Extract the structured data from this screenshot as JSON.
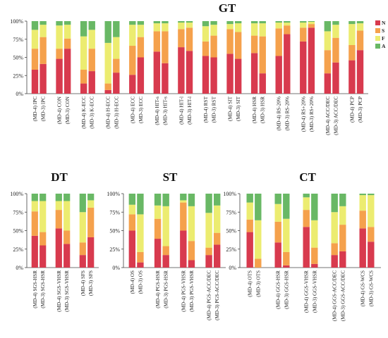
{
  "colors": {
    "N": "#d83a4e",
    "S": "#f5a14c",
    "F": "#ecec70",
    "A": "#69b865"
  },
  "legend": [
    "N",
    "S",
    "F",
    "A"
  ],
  "y_ticks": [
    "0%",
    "25%",
    "50%",
    "75%",
    "100%"
  ],
  "chart_data": [
    {
      "type": "bar",
      "stacked": true,
      "title": "GT",
      "ylim": [
        0,
        100
      ],
      "series_names": [
        "N",
        "S",
        "F",
        "A"
      ],
      "categories": [
        "(MD-4) IPC",
        "(MD-3) IPC",
        "(MD-4) CON",
        "(MD-3) CON",
        "(MD-4) K-ECC",
        "(MD-3) K-ECC",
        "(MD-4) H-ECC",
        "(MD-3) H-ECC",
        "(MD-4) ECC",
        "(MD-3) ECC",
        "(MD-4) HIT-s",
        "(MD-3) HIT-s",
        "(MD-4) HIT-l",
        "(MD-3) HIT-l",
        "(MD-4) RST",
        "(MD-3) RST",
        "(MD-4) SIT",
        "(MD-3) SIT",
        "(MD-4) HSR",
        "(MD-3) HSR",
        "(MD-4) RS-20%",
        "(MD-3) RS-20%",
        "(MD-4) RS+20%",
        "(MD-3) RS+20%",
        "(MD-4) ACC/DEC",
        "(MD-3) ACC/DEC",
        "(MD-4) PCP",
        "(MD-3) PCP"
      ],
      "values": [
        [
          33,
          29,
          26,
          12
        ],
        [
          41,
          37,
          17,
          5
        ],
        [
          48,
          14,
          32,
          6
        ],
        [
          62,
          14,
          19,
          5
        ],
        [
          14,
          19,
          46,
          21
        ],
        [
          31,
          31,
          26,
          12
        ],
        [
          5,
          9,
          56,
          30
        ],
        [
          29,
          19,
          30,
          22
        ],
        [
          26,
          40,
          29,
          5
        ],
        [
          50,
          28,
          17,
          5
        ],
        [
          58,
          28,
          11,
          3
        ],
        [
          42,
          44,
          11,
          3
        ],
        [
          64,
          25,
          9,
          2
        ],
        [
          59,
          32,
          7,
          2
        ],
        [
          52,
          20,
          21,
          7
        ],
        [
          50,
          30,
          15,
          5
        ],
        [
          55,
          34,
          7,
          4
        ],
        [
          48,
          37,
          12,
          3
        ],
        [
          56,
          24,
          17,
          3
        ],
        [
          28,
          51,
          18,
          3
        ],
        [
          52,
          38,
          8,
          2
        ],
        [
          82,
          12,
          4,
          2
        ],
        [
          72,
          19,
          7,
          2
        ],
        [
          91,
          5,
          3,
          1
        ],
        [
          28,
          32,
          26,
          14
        ],
        [
          43,
          34,
          18,
          5
        ],
        [
          46,
          21,
          29,
          4
        ],
        [
          60,
          27,
          10,
          3
        ]
      ]
    },
    {
      "type": "bar",
      "stacked": true,
      "title": "DT",
      "ylim": [
        0,
        100
      ],
      "series_names": [
        "N",
        "S",
        "F",
        "A"
      ],
      "categories": [
        "(MD-4) SGS-HSR",
        "(MD-3) SGS-HSR",
        "(MD-4) SGS-VHSR",
        "(MD-3) SGS-VHSR",
        "(MD-4) SFS",
        "(MD-3) SFS"
      ],
      "values": [
        [
          43,
          33,
          14,
          10
        ],
        [
          30,
          18,
          42,
          10
        ],
        [
          53,
          25,
          12,
          10
        ],
        [
          32,
          18,
          40,
          10
        ],
        [
          17,
          17,
          41,
          25
        ],
        [
          41,
          40,
          10,
          9
        ]
      ]
    },
    {
      "type": "bar",
      "stacked": true,
      "title": "ST",
      "ylim": [
        0,
        100
      ],
      "series_names": [
        "N",
        "S",
        "F",
        "A"
      ],
      "categories": [
        "(MD-4) OS",
        "(MD-3) OS",
        "(MD-4) PGS-HSR",
        "(MD-3) PGS-HSR",
        "(MD-4) PGS-VHSR",
        "(MD-3) PGS-VHSR",
        "(MD-4) PGS-ACC/DEC",
        "(MD-3) PGS-ACC/DEC"
      ],
      "values": [
        [
          50,
          22,
          13,
          15
        ],
        [
          7,
          14,
          51,
          28
        ],
        [
          39,
          27,
          18,
          16
        ],
        [
          17,
          12,
          54,
          17
        ],
        [
          50,
          38,
          3,
          9
        ],
        [
          10,
          26,
          47,
          17
        ],
        [
          17,
          10,
          47,
          26
        ],
        [
          31,
          16,
          37,
          16
        ]
      ]
    },
    {
      "type": "bar",
      "stacked": true,
      "title": "CT",
      "ylim": [
        0,
        100
      ],
      "series_names": [
        "N",
        "S",
        "F",
        "A"
      ],
      "categories": [
        "(MD-4) OTS",
        "(MD-3) OTS",
        "(MD-4) GGS-HSR",
        "(MD-3) GGS-HSR",
        "(MD-4) GGS-VHSR",
        "(MD-3) GGS-VHSR",
        "(MD-4) GGS-ACC/DEC",
        "(MD-3) GGS-ACC/DEC",
        "(MD-4) GS-WCS",
        "(MD-3) GS-WCS"
      ],
      "values": [
        [
          48,
          17,
          23,
          12
        ],
        [
          0,
          12,
          52,
          36
        ],
        [
          34,
          28,
          24,
          14
        ],
        [
          3,
          18,
          45,
          34
        ],
        [
          55,
          23,
          17,
          5
        ],
        [
          5,
          22,
          37,
          36
        ],
        [
          17,
          16,
          42,
          25
        ],
        [
          22,
          36,
          25,
          17
        ],
        [
          53,
          24,
          21,
          2
        ],
        [
          35,
          20,
          43,
          2
        ]
      ]
    }
  ]
}
